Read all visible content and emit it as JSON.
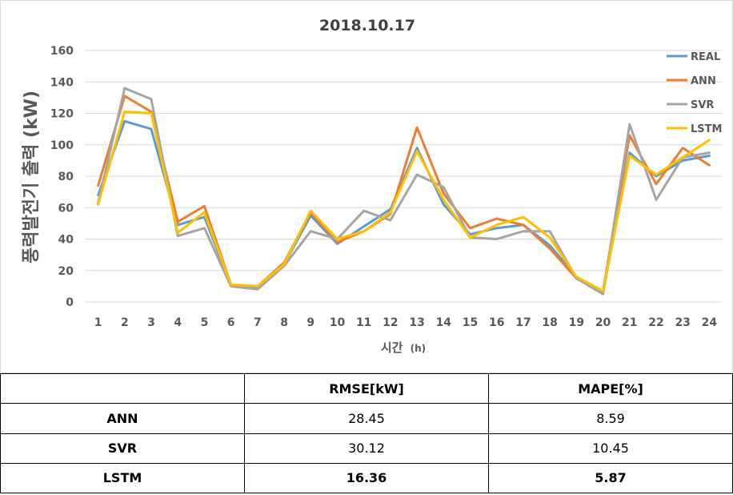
{
  "chart_data": {
    "type": "line",
    "title": "2018.10.17",
    "xlabel": "시간",
    "xlabel_unit": "(h)",
    "ylabel": "풍력발전기 출력 (kW)",
    "categories": [
      "1",
      "2",
      "3",
      "4",
      "5",
      "6",
      "7",
      "8",
      "9",
      "10",
      "11",
      "12",
      "13",
      "14",
      "15",
      "16",
      "17",
      "18",
      "19",
      "20",
      "21",
      "22",
      "23",
      "24"
    ],
    "ylim": [
      0,
      160
    ],
    "yticks": [
      "0",
      "20",
      "40",
      "60",
      "80",
      "100",
      "120",
      "140",
      "160"
    ],
    "grid": "horizontal",
    "legend_position": "top-right",
    "series": [
      {
        "name": "REAL",
        "color": "#5b9bd5",
        "values": [
          68,
          115,
          110,
          49,
          54,
          11,
          9,
          24,
          55,
          37,
          48,
          59,
          98,
          62,
          43,
          47,
          49,
          36,
          16,
          6,
          95,
          80,
          90,
          93
        ]
      },
      {
        "name": "ANN",
        "color": "#ed7d31",
        "values": [
          74,
          131,
          121,
          51,
          61,
          11,
          10,
          25,
          57,
          38,
          45,
          56,
          111,
          69,
          47,
          53,
          49,
          34,
          15,
          7,
          106,
          75,
          98,
          87
        ]
      },
      {
        "name": "SVR",
        "color": "#a5a5a5",
        "values": [
          63,
          136,
          129,
          42,
          47,
          10,
          8,
          23,
          45,
          40,
          58,
          52,
          81,
          73,
          41,
          40,
          45,
          45,
          15,
          5,
          113,
          65,
          92,
          95
        ]
      },
      {
        "name": "LSTM",
        "color": "#ffc000",
        "values": [
          62,
          121,
          120,
          44,
          57,
          11,
          10,
          24,
          58,
          40,
          45,
          57,
          96,
          65,
          41,
          49,
          54,
          41,
          16,
          7,
          93,
          81,
          92,
          103
        ]
      }
    ]
  },
  "table": {
    "headers": [
      "",
      "RMSE[kW]",
      "MAPE[%]"
    ],
    "rows": [
      {
        "model": "ANN",
        "rmse": "28.45",
        "mape": "8.59"
      },
      {
        "model": "SVR",
        "rmse": "30.12",
        "mape": "10.45"
      },
      {
        "model": "LSTM",
        "rmse": "16.36",
        "mape": "5.87"
      }
    ]
  }
}
